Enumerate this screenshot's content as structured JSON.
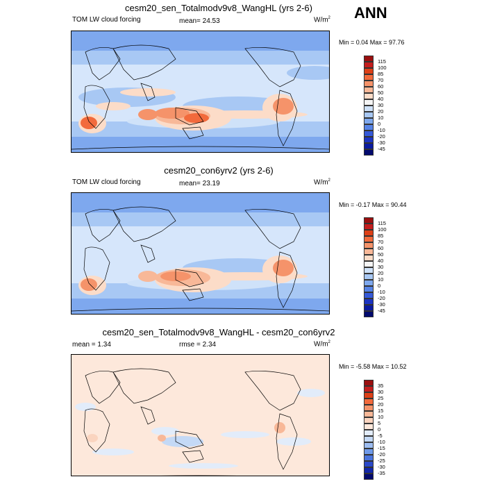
{
  "season": "ANN",
  "panels": [
    {
      "title": "cesm20_sen_Totalmodv9v8_WangHL (yrs 2-6)",
      "left_label": "TOM LW cloud forcing",
      "mean_text": "mean=  24.53",
      "units": "W/m",
      "units_sup": "2",
      "minmax": "Min =  0.04 Max =  97.76",
      "levels": [
        "115",
        "100",
        "85",
        "70",
        "60",
        "50",
        "40",
        "30",
        "20",
        "10",
        "0",
        "-10",
        "-20",
        "-30",
        "-45"
      ],
      "colors": [
        "#9a0f0f",
        "#c41d1d",
        "#dd4017",
        "#f26a3c",
        "#f5936a",
        "#f8b898",
        "#fcdcc8",
        "#f5f5f5",
        "#cfe2f9",
        "#a8c8f4",
        "#7ea8ee",
        "#5683e6",
        "#3559d8",
        "#1c34c2",
        "#0a1aa0",
        "#030a6e"
      ]
    },
    {
      "title": "cesm20_con6yrv2 (yrs 2-6)",
      "left_label": "TOM LW cloud forcing",
      "mean_text": "mean=  23.19",
      "units": "W/m",
      "units_sup": "2",
      "minmax": "Min =  -0.17 Max =  90.44",
      "levels": [
        "115",
        "100",
        "85",
        "70",
        "60",
        "50",
        "40",
        "30",
        "20",
        "10",
        "0",
        "-10",
        "-20",
        "-30",
        "-45"
      ],
      "colors": [
        "#9a0f0f",
        "#c41d1d",
        "#dd4017",
        "#f26a3c",
        "#f5936a",
        "#f8b898",
        "#fcdcc8",
        "#f5f5f5",
        "#cfe2f9",
        "#a8c8f4",
        "#7ea8ee",
        "#5683e6",
        "#3559d8",
        "#1c34c2",
        "#0a1aa0",
        "#030a6e"
      ]
    },
    {
      "title": "cesm20_sen_Totalmodv9v8_WangHL - cesm20_con6yrv2",
      "left_label": "mean =   1.34",
      "mean_text": "rmse =   2.34",
      "units": "W/m",
      "units_sup": "2",
      "minmax": "Min =  -5.58 Max =  10.52",
      "levels": [
        "35",
        "30",
        "25",
        "20",
        "15",
        "10",
        "5",
        "0",
        "-5",
        "-10",
        "-15",
        "-20",
        "-25",
        "-30",
        "-35"
      ],
      "colors": [
        "#9a0f0f",
        "#c41d1d",
        "#dd4017",
        "#f26a3c",
        "#f5936a",
        "#f8b898",
        "#fad4bf",
        "#fde8db",
        "#e2ecfa",
        "#c4d9f6",
        "#9dbdf1",
        "#6f9aea",
        "#4a74dd",
        "#2a48c8",
        "#1226a8",
        "#030a6e"
      ]
    }
  ]
}
